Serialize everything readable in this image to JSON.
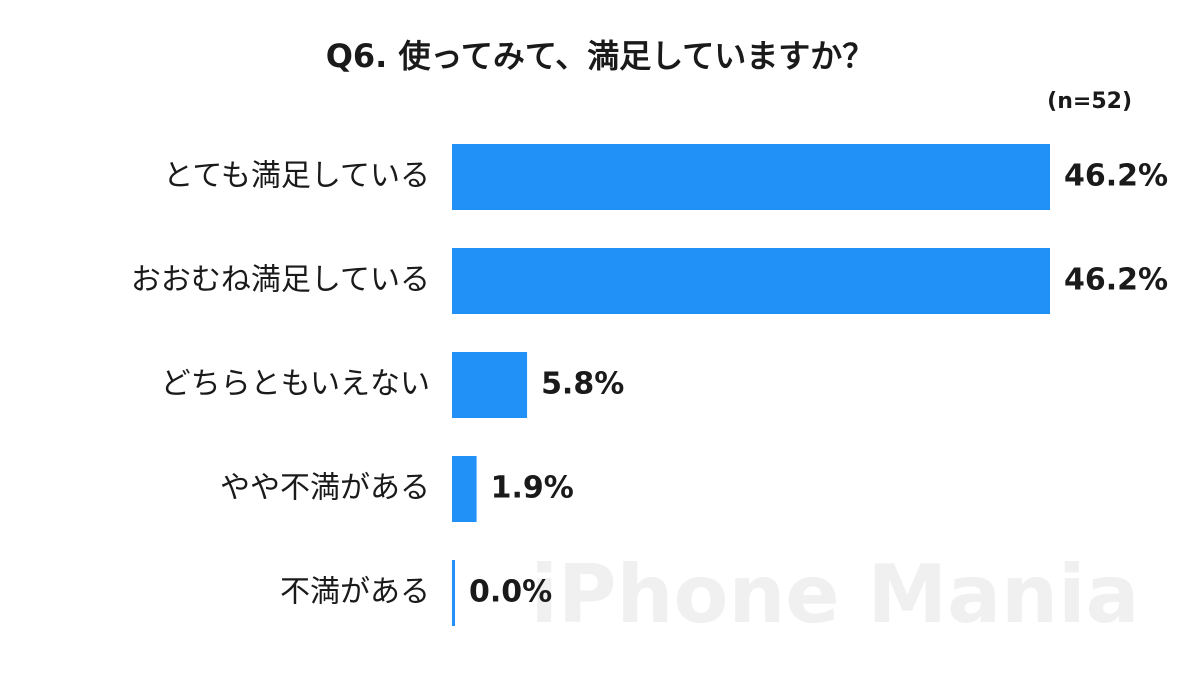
{
  "chart_data": {
    "type": "bar",
    "orientation": "horizontal",
    "title": "Q6. 使ってみて、満足していますか？",
    "subtitle": "(n=52)",
    "watermark": "iPhone Mania",
    "categories": [
      "とても満足している",
      "おおむね満足している",
      "どちらともいえない",
      "やや不満がある",
      "不満がある"
    ],
    "values": [
      46.2,
      46.2,
      5.8,
      1.9,
      0.0
    ],
    "value_labels": [
      "46.2%",
      "46.2%",
      "5.8%",
      "1.9%",
      "0.0%"
    ],
    "color": "#2291f7"
  }
}
